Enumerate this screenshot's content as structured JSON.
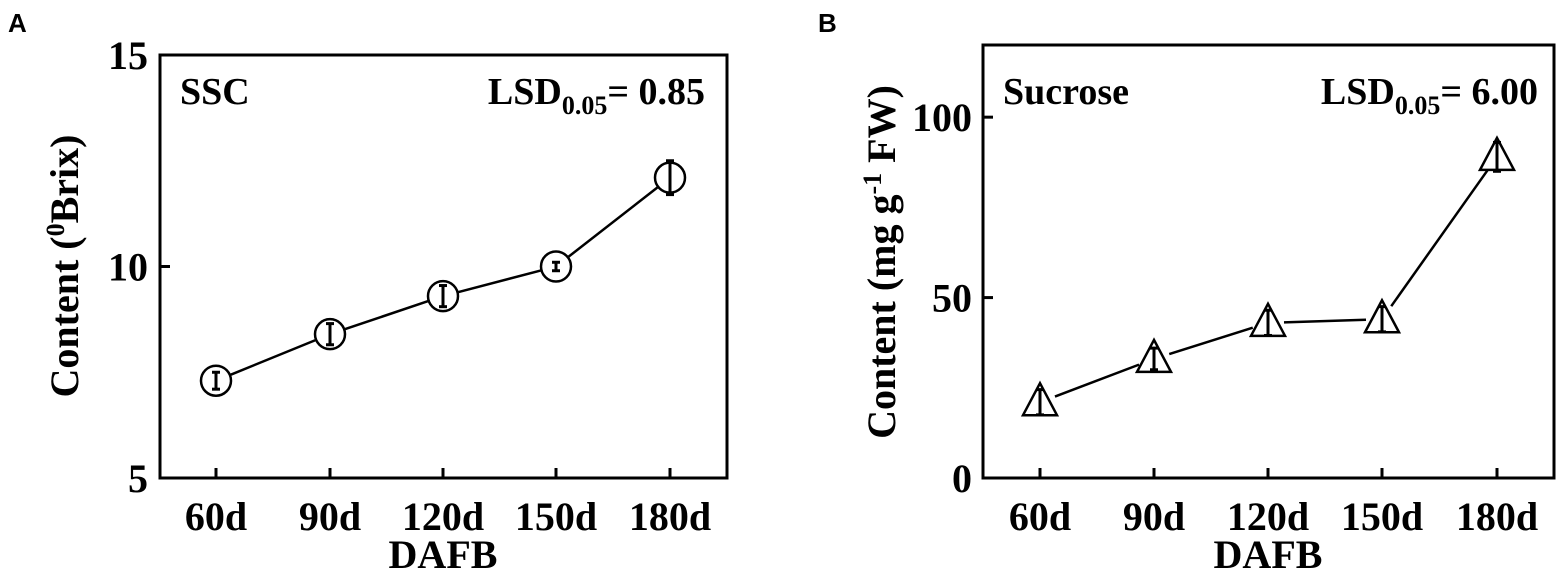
{
  "chart_data": [
    {
      "type": "line",
      "panel_label": "A",
      "annotation_left": "SSC",
      "annotation_right": {
        "main": "LSD",
        "sub": "0.05",
        "tail": "= 0.85"
      },
      "xlabel": "DAFB",
      "ylabel": {
        "pre": "Content (",
        "sup": "0",
        "post": "Brix)"
      },
      "categories": [
        "60d",
        "90d",
        "120d",
        "150d",
        "180d"
      ],
      "values": [
        7.3,
        8.4,
        9.3,
        10.0,
        12.1
      ],
      "errors": [
        0.2,
        0.25,
        0.25,
        0.1,
        0.4
      ],
      "ylim": [
        5,
        15
      ],
      "yticks": [
        "5",
        "10",
        "15"
      ],
      "marker": "circle"
    },
    {
      "type": "line",
      "panel_label": "B",
      "annotation_left": "Sucrose",
      "annotation_right": {
        "main": "LSD",
        "sub": "0.05",
        "tail": "= 6.00"
      },
      "xlabel": "DAFB",
      "ylabel": {
        "pre": "Content (mg g",
        "sup": "-1",
        "post": " FW)"
      },
      "categories": [
        "60d",
        "90d",
        "120d",
        "150d",
        "180d"
      ],
      "values": [
        21,
        33,
        43,
        44,
        89
      ],
      "errors": [
        3.5,
        3,
        3.5,
        3.5,
        4
      ],
      "ylim": [
        0,
        120
      ],
      "yticks": [
        "0",
        "50",
        "100"
      ],
      "marker": "triangle"
    }
  ]
}
